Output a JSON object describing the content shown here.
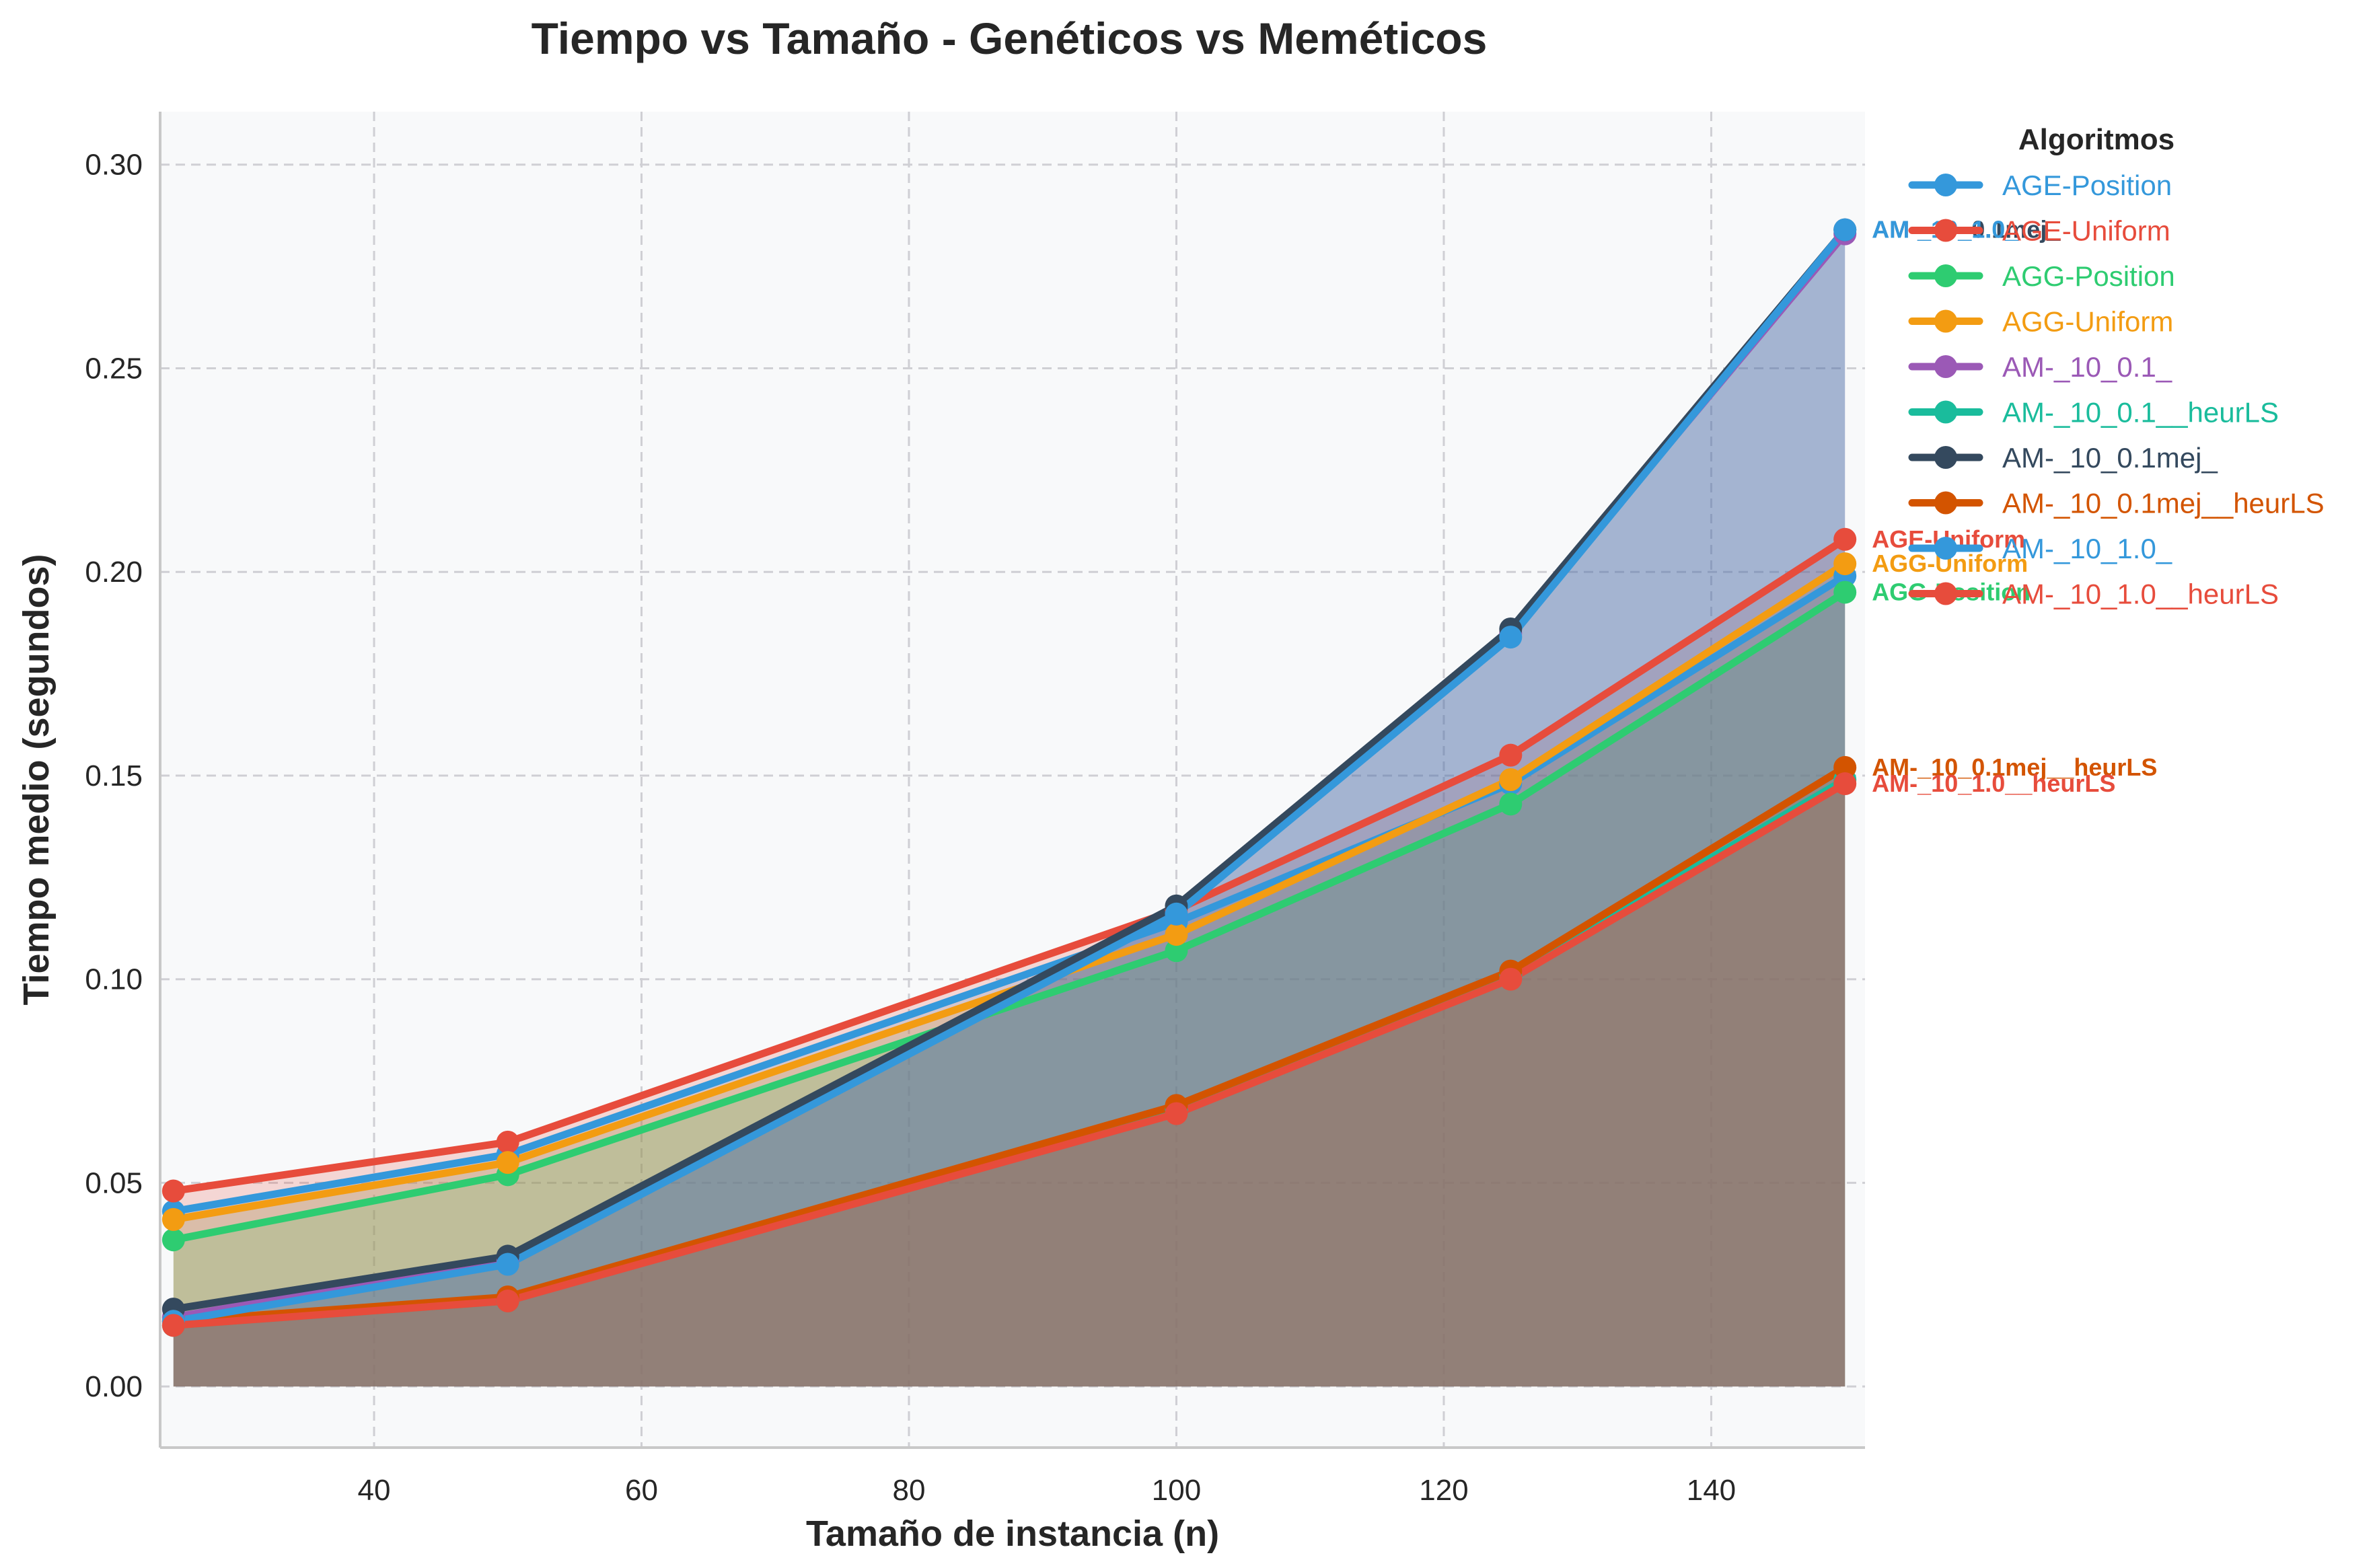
{
  "chart_data": {
    "type": "line",
    "title": "Tiempo vs Tamaño - Genéticos vs Meméticos",
    "xlabel": "Tamaño de instancia (n)",
    "ylabel": "Tiempo medio (segundos)",
    "xlim": [
      24,
      151.5
    ],
    "ylim": [
      -0.015,
      0.313
    ],
    "xticks": [
      40,
      60,
      80,
      100,
      120,
      140
    ],
    "xtick_labels": [
      "40",
      "60",
      "80",
      "100",
      "120",
      "140"
    ],
    "yticks": [
      0.0,
      0.05,
      0.1,
      0.15,
      0.2,
      0.25,
      0.3
    ],
    "ytick_labels": [
      "0.00",
      "0.05",
      "0.10",
      "0.15",
      "0.20",
      "0.25",
      "0.30"
    ],
    "grid": true,
    "legend_title": "Algoritmos",
    "legend_position": "outside-right",
    "x": [
      25,
      50,
      100,
      125,
      150
    ],
    "series": [
      {
        "name": "AGE-Position",
        "color": "#3498db",
        "values": [
          0.043,
          0.057,
          0.114,
          0.148,
          0.199
        ]
      },
      {
        "name": "AGE-Uniform",
        "color": "#e74c3c",
        "values": [
          0.048,
          0.06,
          0.117,
          0.155,
          0.208
        ]
      },
      {
        "name": "AGG-Position",
        "color": "#2ecc71",
        "values": [
          0.036,
          0.052,
          0.107,
          0.143,
          0.195
        ]
      },
      {
        "name": "AGG-Uniform",
        "color": "#f39c12",
        "values": [
          0.041,
          0.055,
          0.111,
          0.149,
          0.202
        ]
      },
      {
        "name": "AM-_10_0.1_",
        "color": "#9b59b6",
        "values": [
          0.017,
          0.031,
          0.116,
          0.185,
          0.283
        ]
      },
      {
        "name": "AM-_10_0.1__heurLS",
        "color": "#1abc9c",
        "values": [
          0.015,
          0.021,
          0.068,
          0.101,
          0.149
        ]
      },
      {
        "name": "AM-_10_0.1mej_",
        "color": "#34495e",
        "values": [
          0.019,
          0.032,
          0.118,
          0.186,
          0.284
        ]
      },
      {
        "name": "AM-_10_0.1mej__heurLS",
        "color": "#d35400",
        "values": [
          0.016,
          0.022,
          0.069,
          0.102,
          0.152
        ]
      },
      {
        "name": "AM-_10_1.0_",
        "color": "#3498db",
        "values": [
          0.016,
          0.03,
          0.116,
          0.184,
          0.284
        ]
      },
      {
        "name": "AM-_10_1.0__heurLS",
        "color": "#e74c3c",
        "values": [
          0.015,
          0.021,
          0.067,
          0.1,
          0.148
        ]
      }
    ],
    "end_labels": [
      {
        "text": "AM-_10_0.1mej_",
        "color": "#34495e",
        "series": 6
      },
      {
        "text": "AM-_10_1.0_",
        "color": "#3498db",
        "series": 8
      },
      {
        "text": "AGE-Uniform",
        "color": "#e74c3c",
        "series": 1
      },
      {
        "text": "AGG-Uniform",
        "color": "#f39c12",
        "series": 3
      },
      {
        "text": "AGG-Position",
        "color": "#2ecc71",
        "series": 2
      },
      {
        "text": "AM-_10_0.1mej__heurLS",
        "color": "#d35400",
        "series": 7
      },
      {
        "text": "AM-_10_1.0__heurLS",
        "color": "#e74c3c",
        "series": 9
      }
    ]
  }
}
